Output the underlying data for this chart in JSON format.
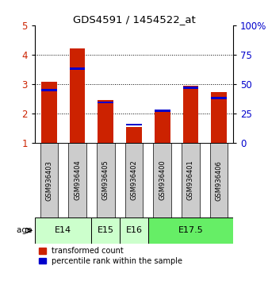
{
  "title": "GDS4591 / 1454522_at",
  "samples": [
    "GSM936403",
    "GSM936404",
    "GSM936405",
    "GSM936402",
    "GSM936400",
    "GSM936401",
    "GSM936406"
  ],
  "red_values": [
    3.08,
    4.22,
    2.45,
    1.55,
    2.08,
    2.95,
    2.72
  ],
  "blue_values": [
    2.8,
    3.52,
    2.38,
    1.62,
    2.1,
    2.88,
    2.52
  ],
  "age_groups": [
    {
      "label": "E14",
      "start": 0,
      "end": 2,
      "color": "#ccffcc"
    },
    {
      "label": "E15",
      "start": 2,
      "end": 3,
      "color": "#ccffcc"
    },
    {
      "label": "E16",
      "start": 3,
      "end": 4,
      "color": "#ccffcc"
    },
    {
      "label": "E17.5",
      "start": 4,
      "end": 7,
      "color": "#66ee66"
    }
  ],
  "ylim": [
    1,
    5
  ],
  "y2lim": [
    0,
    100
  ],
  "yticks_left": [
    1,
    2,
    3,
    4,
    5
  ],
  "yticks_right": [
    0,
    25,
    50,
    75,
    100
  ],
  "bar_width": 0.55,
  "red_color": "#cc2200",
  "blue_color": "#0000cc",
  "bg_color": "#ffffff",
  "sample_bg": "#cccccc",
  "legend_red": "transformed count",
  "legend_blue": "percentile rank within the sample"
}
